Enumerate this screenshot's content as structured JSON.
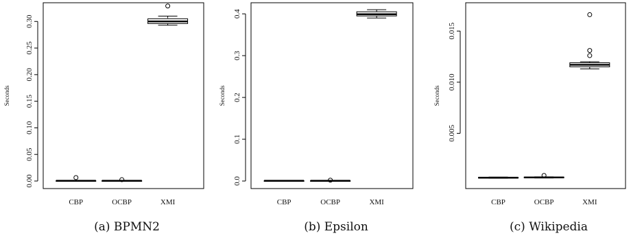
{
  "chart_data": [
    {
      "type": "boxplot",
      "caption": "(a) BPMN2",
      "ylabel": "Seconds",
      "ylim": [
        0,
        0.33
      ],
      "yticks": [
        0.0,
        0.05,
        0.1,
        0.15,
        0.2,
        0.25,
        0.3
      ],
      "ytick_labels": [
        "0.00",
        "0.05",
        "0.10",
        "0.15",
        "0.20",
        "0.25",
        "0.30"
      ],
      "categories": [
        "CBP",
        "OCBP",
        "XMI"
      ],
      "boxes": [
        {
          "name": "CBP",
          "whisker_low": 0.0,
          "q1": 0.0002,
          "median": 0.0005,
          "q3": 0.0008,
          "whisker_high": 0.0012,
          "outliers": [
            0.0065
          ]
        },
        {
          "name": "OCBP",
          "whisker_low": 0.0,
          "q1": 0.0002,
          "median": 0.0005,
          "q3": 0.0008,
          "whisker_high": 0.0012,
          "outliers": [
            0.0025
          ]
        },
        {
          "name": "XMI",
          "whisker_low": 0.293,
          "q1": 0.296,
          "median": 0.3,
          "q3": 0.305,
          "whisker_high": 0.31,
          "outliers": [
            0.329
          ]
        }
      ]
    },
    {
      "type": "boxplot",
      "caption": "(b) Epsilon",
      "ylabel": "Seconds",
      "ylim": [
        0,
        0.42
      ],
      "yticks": [
        0.0,
        0.1,
        0.2,
        0.3,
        0.4
      ],
      "ytick_labels": [
        "0.0",
        "0.1",
        "0.2",
        "0.3",
        "0.4"
      ],
      "categories": [
        "CBP",
        "OCBP",
        "XMI"
      ],
      "boxes": [
        {
          "name": "CBP",
          "whisker_low": 0.0,
          "q1": 0.0003,
          "median": 0.0006,
          "q3": 0.0009,
          "whisker_high": 0.0013,
          "outliers": []
        },
        {
          "name": "OCBP",
          "whisker_low": 0.0,
          "q1": 0.0003,
          "median": 0.0006,
          "q3": 0.0009,
          "whisker_high": 0.0013,
          "outliers": [
            0.002
          ]
        },
        {
          "name": "XMI",
          "whisker_low": 0.39,
          "q1": 0.395,
          "median": 0.399,
          "q3": 0.405,
          "whisker_high": 0.41,
          "outliers": []
        }
      ]
    },
    {
      "type": "boxplot",
      "caption": "(c) Wikipedia",
      "ylabel": "Seconds",
      "ylim": [
        0,
        0.0175
      ],
      "yticks": [
        0.005,
        0.01,
        0.015
      ],
      "ytick_labels": [
        "0.005",
        "0.010",
        "0.015"
      ],
      "categories": [
        "CBP",
        "OCBP",
        "XMI"
      ],
      "boxes": [
        {
          "name": "CBP",
          "whisker_low": 0.0006,
          "q1": 0.00063,
          "median": 0.00066,
          "q3": 0.00069,
          "whisker_high": 0.00072,
          "outliers": []
        },
        {
          "name": "OCBP",
          "whisker_low": 0.00063,
          "q1": 0.00066,
          "median": 0.00069,
          "q3": 0.00072,
          "whisker_high": 0.00075,
          "outliers": [
            0.00088
          ]
        },
        {
          "name": "XMI",
          "whisker_low": 0.0113,
          "q1": 0.0115,
          "median": 0.0117,
          "q3": 0.0119,
          "whisker_high": 0.012,
          "outliers": [
            0.0126,
            0.0131,
            0.0166
          ]
        }
      ]
    }
  ]
}
